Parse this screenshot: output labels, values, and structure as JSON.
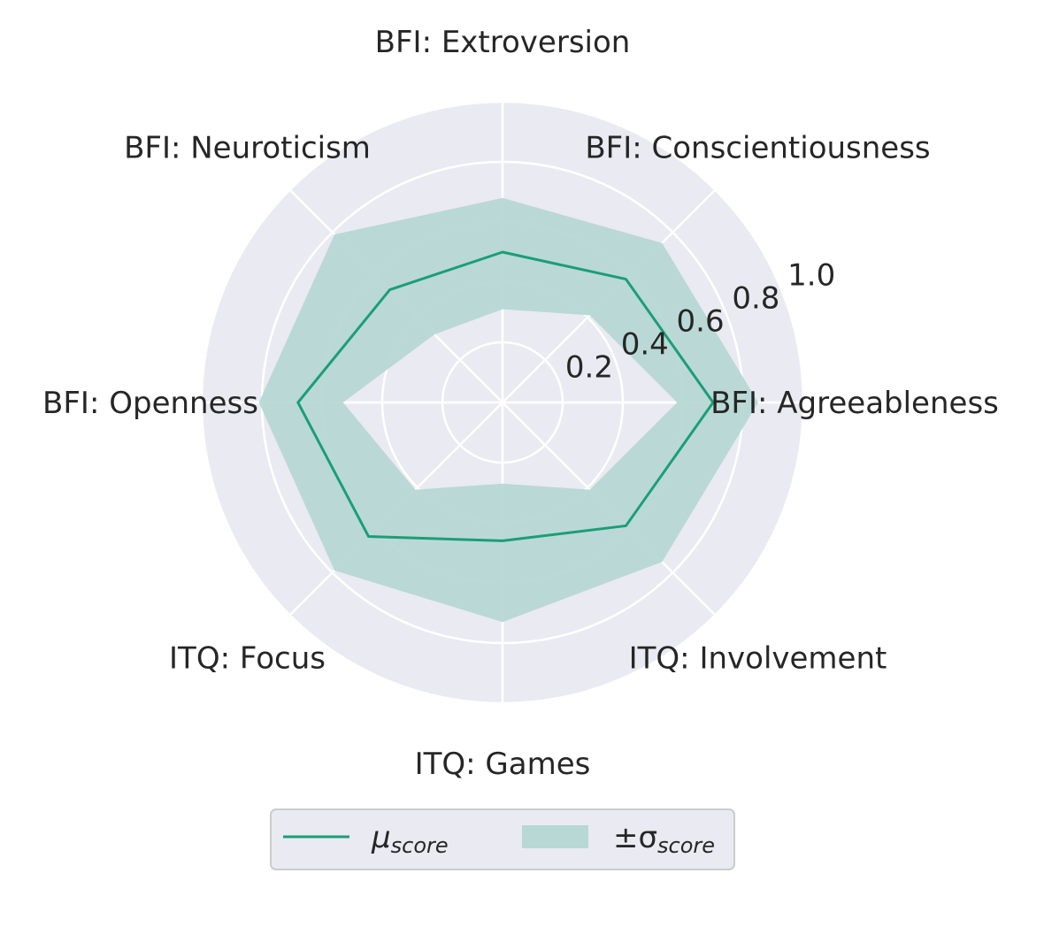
{
  "chart_data": {
    "type": "radar",
    "axes": [
      "BFI: Agreeableness",
      "BFI: Conscientiousness",
      "BFI: Extroversion",
      "BFI: Neuroticism",
      "BFI: Openness",
      "ITQ: Focus",
      "ITQ: Games",
      "ITQ: Involvement"
    ],
    "rlim": [
      0,
      1.0
    ],
    "rticks": [
      "0.2",
      "0.4",
      "0.6",
      "0.8",
      "1.0"
    ],
    "rtick_values": [
      0.2,
      0.4,
      0.6,
      0.8,
      1.0
    ],
    "grid": true,
    "legend_position": "bottom-center",
    "colors": {
      "mean_line": "#1b9e77",
      "std_fill": "#b7d8d4",
      "plot_bg": "#eaeaf2",
      "grid": "#ffffff"
    },
    "series": [
      {
        "name": "mean",
        "legend_main": "μ",
        "legend_sub": "score",
        "values": [
          0.7,
          0.58,
          0.5,
          0.53,
          0.68,
          0.63,
          0.46,
          0.58
        ]
      },
      {
        "name": "std",
        "legend_main": "±σ",
        "legend_sub": "score",
        "lower": [
          0.58,
          0.41,
          0.31,
          0.32,
          0.53,
          0.41,
          0.27,
          0.41
        ],
        "upper": [
          0.85,
          0.75,
          0.68,
          0.79,
          0.81,
          0.79,
          0.73,
          0.75
        ]
      }
    ]
  }
}
